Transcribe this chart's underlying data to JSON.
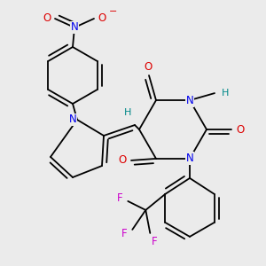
{
  "background_color": "#ebebeb",
  "atom_colors": {
    "N": "#0000ee",
    "O": "#dd0000",
    "F": "#cc00cc",
    "H": "#008888",
    "C": "#000000"
  },
  "bond_lw": 1.3,
  "font_size": 8.5
}
